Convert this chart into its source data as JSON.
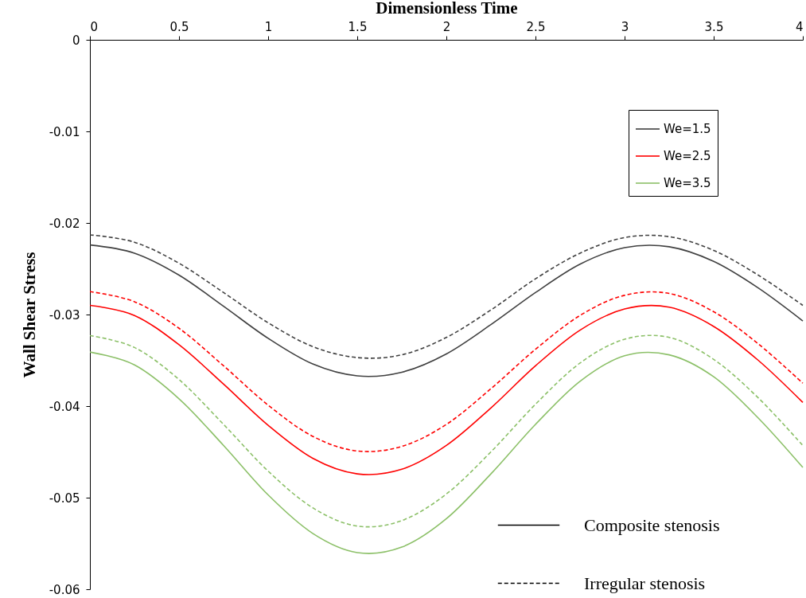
{
  "chart_data": {
    "type": "line",
    "xlabel": "Dimensionless Time",
    "ylabel": "Wall Shear Stress",
    "x": [
      0,
      0.25,
      0.5,
      0.75,
      1,
      1.25,
      1.5,
      1.75,
      2,
      2.25,
      2.5,
      2.75,
      3,
      3.25,
      3.5,
      3.75,
      4
    ],
    "xlim": [
      0,
      4
    ],
    "xticks": [
      0,
      0.5,
      1,
      1.5,
      2,
      2.5,
      3,
      3.5,
      4
    ],
    "ylim": [
      -0.06,
      0
    ],
    "yticks": [
      0,
      -0.01,
      -0.02,
      -0.03,
      -0.04,
      -0.05,
      -0.06
    ],
    "grid": false,
    "legend": "top right",
    "marker": "none",
    "annotations": [
      "Composite stenosis",
      "Irregular stenosis"
    ],
    "series": [
      {
        "name": "We=1.5",
        "color": "#404040",
        "line_style": "solid",
        "values": [
          -0.0224,
          -0.0233,
          -0.0257,
          -0.0291,
          -0.0326,
          -0.0354,
          -0.0367,
          -0.0363,
          -0.0343,
          -0.0311,
          -0.0276,
          -0.0245,
          -0.0227,
          -0.0226,
          -0.0242,
          -0.0271,
          -0.0307
        ]
      },
      {
        "name": "We=2.5",
        "color": "#ff0000",
        "line_style": "solid",
        "values": [
          -0.029,
          -0.0301,
          -0.0333,
          -0.0376,
          -0.0421,
          -0.0457,
          -0.0474,
          -0.0469,
          -0.0443,
          -0.0402,
          -0.0356,
          -0.0317,
          -0.0294,
          -0.0292,
          -0.0313,
          -0.035,
          -0.0396
        ]
      },
      {
        "name": "We=3.5",
        "color": "#8cc068",
        "line_style": "solid",
        "values": [
          -0.0341,
          -0.0355,
          -0.0392,
          -0.0443,
          -0.0497,
          -0.0539,
          -0.056,
          -0.0554,
          -0.0523,
          -0.0474,
          -0.042,
          -0.0373,
          -0.0345,
          -0.0344,
          -0.0368,
          -0.0413,
          -0.0467
        ]
      },
      {
        "color": "#404040",
        "line_style": "dashed",
        "values": [
          -0.0213,
          -0.0221,
          -0.0244,
          -0.0276,
          -0.0309,
          -0.0335,
          -0.0347,
          -0.0344,
          -0.0325,
          -0.0295,
          -0.0261,
          -0.0233,
          -0.0216,
          -0.0215,
          -0.023,
          -0.0257,
          -0.029
        ]
      },
      {
        "color": "#ff0000",
        "line_style": "dashed",
        "values": [
          -0.0275,
          -0.0286,
          -0.0315,
          -0.0356,
          -0.0399,
          -0.0433,
          -0.0449,
          -0.0444,
          -0.042,
          -0.0381,
          -0.0338,
          -0.0301,
          -0.0279,
          -0.0277,
          -0.0297,
          -0.0332,
          -0.0375
        ]
      },
      {
        "color": "#8cc068",
        "line_style": "dashed",
        "values": [
          -0.0323,
          -0.0336,
          -0.0371,
          -0.042,
          -0.0471,
          -0.0511,
          -0.0531,
          -0.0525,
          -0.0496,
          -0.045,
          -0.0398,
          -0.0353,
          -0.0327,
          -0.0325,
          -0.0349,
          -0.0391,
          -0.0443
        ]
      }
    ]
  }
}
